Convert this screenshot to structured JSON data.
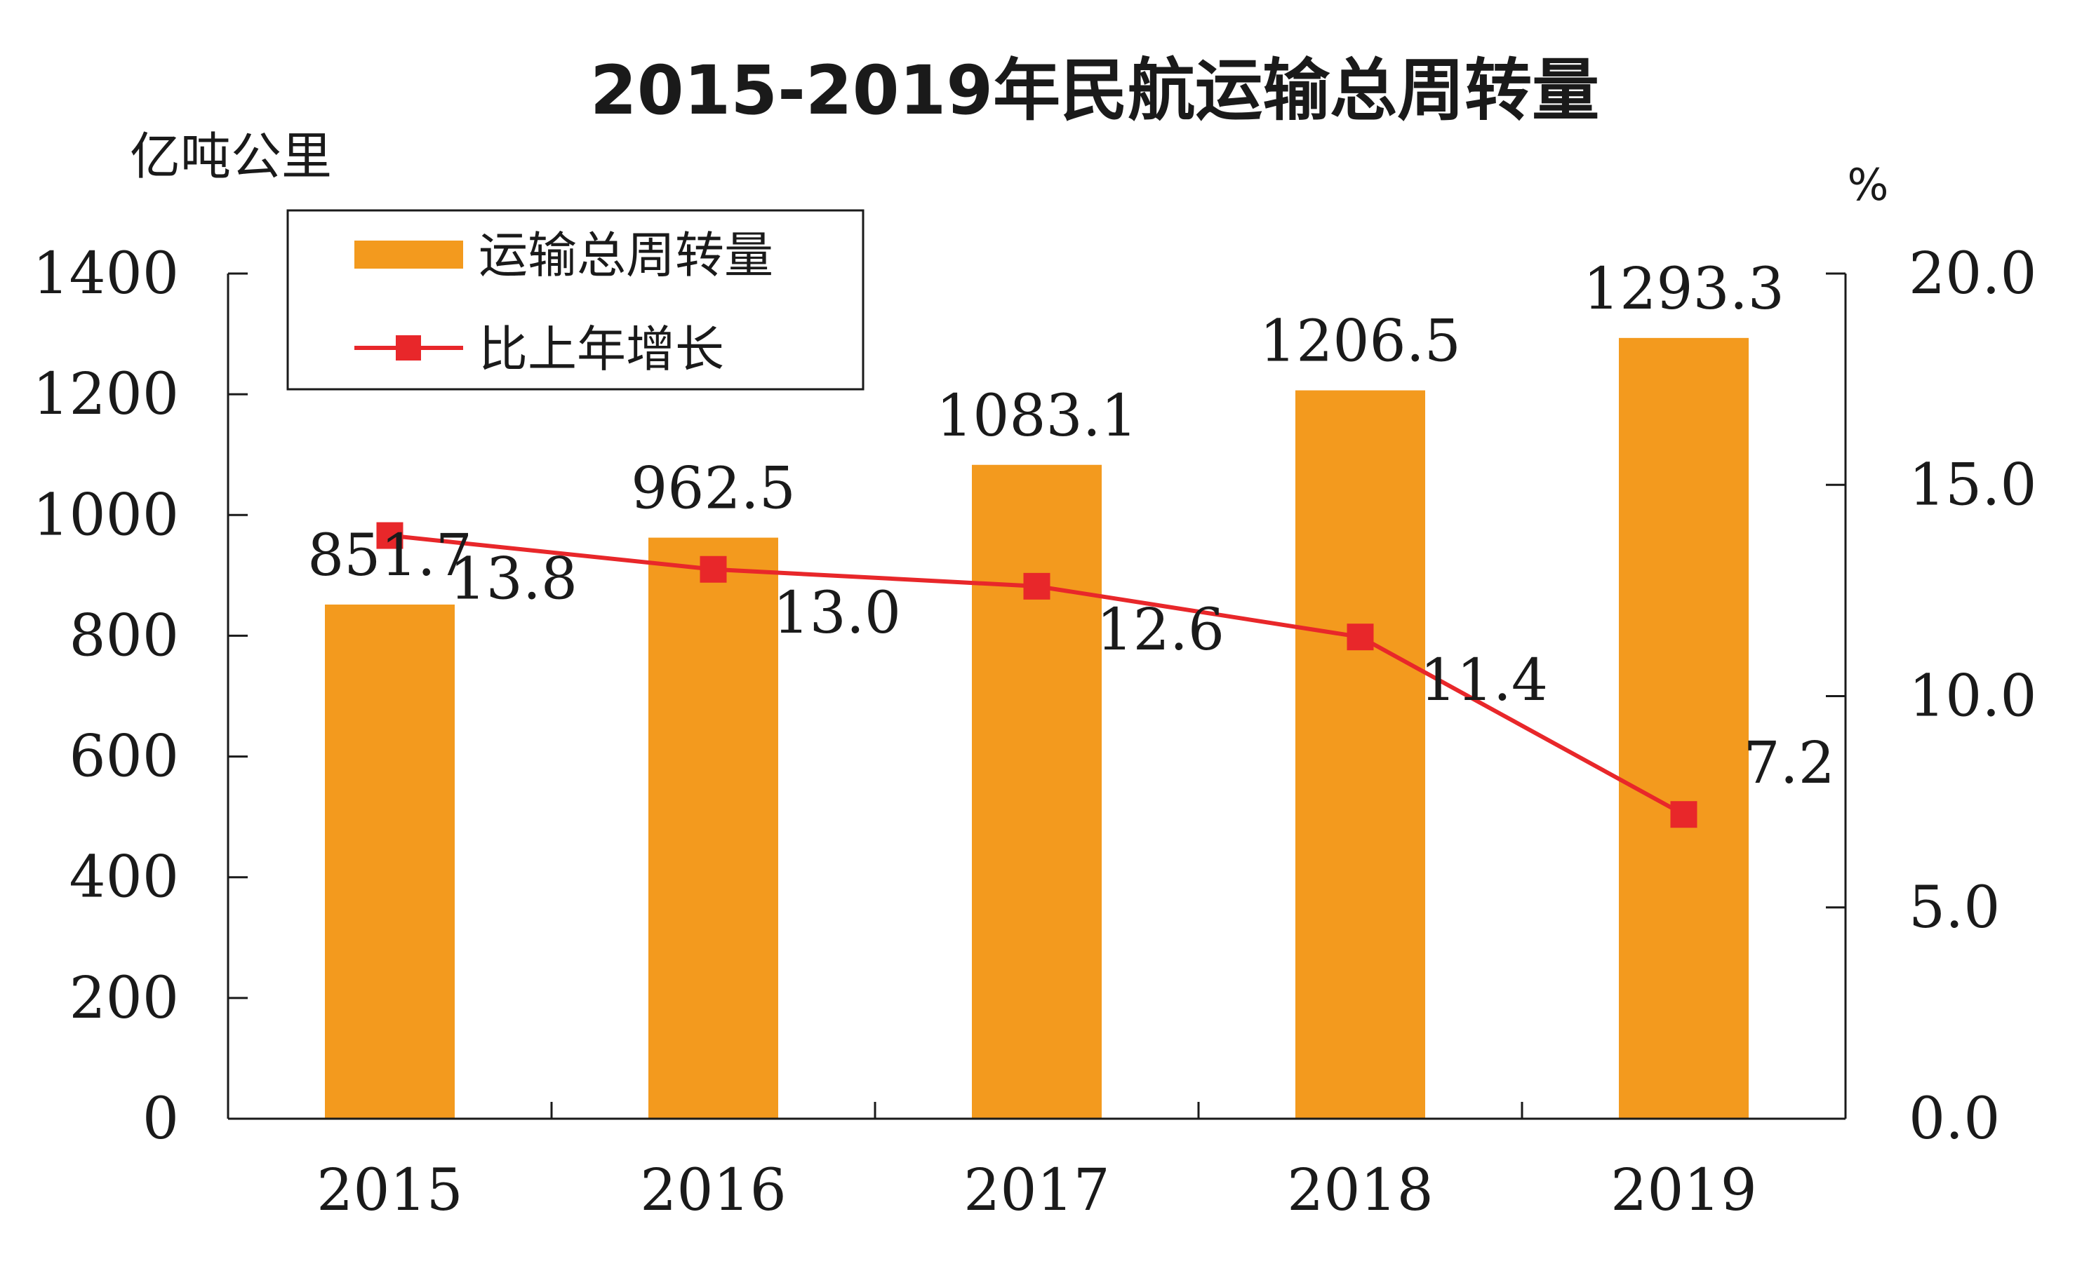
{
  "chart_data": {
    "type": "bar",
    "title": "2015-2019年民航运输总周转量",
    "categories": [
      "2015",
      "2016",
      "2017",
      "2018",
      "2019"
    ],
    "series": [
      {
        "name": "运输总周转量",
        "type": "bar",
        "axis": "left",
        "values": [
          851.7,
          962.5,
          1083.1,
          1206.5,
          1293.3
        ],
        "labels": [
          "851.7",
          "962.5",
          "1083.1",
          "1206.5",
          "1293.3"
        ],
        "color": "#F39A1E"
      },
      {
        "name": "比上年增长",
        "type": "line",
        "axis": "right",
        "values": [
          13.8,
          13.0,
          12.6,
          11.4,
          7.2
        ],
        "labels": [
          "13.8",
          "13.0",
          "12.6",
          "11.4",
          "7.2"
        ],
        "color": "#E8272A"
      }
    ],
    "y_left": {
      "unit": "亿吨公里",
      "ylim": [
        0,
        1400
      ],
      "ticks": [
        "0",
        "200",
        "400",
        "600",
        "800",
        "1000",
        "1200",
        "1400"
      ]
    },
    "y_right": {
      "unit": "%",
      "ylim": [
        0,
        20
      ],
      "ticks": [
        "0.0",
        "5.0",
        "10.0",
        "15.0",
        "20.0"
      ]
    },
    "grid": false,
    "legend_position": "top-left"
  }
}
